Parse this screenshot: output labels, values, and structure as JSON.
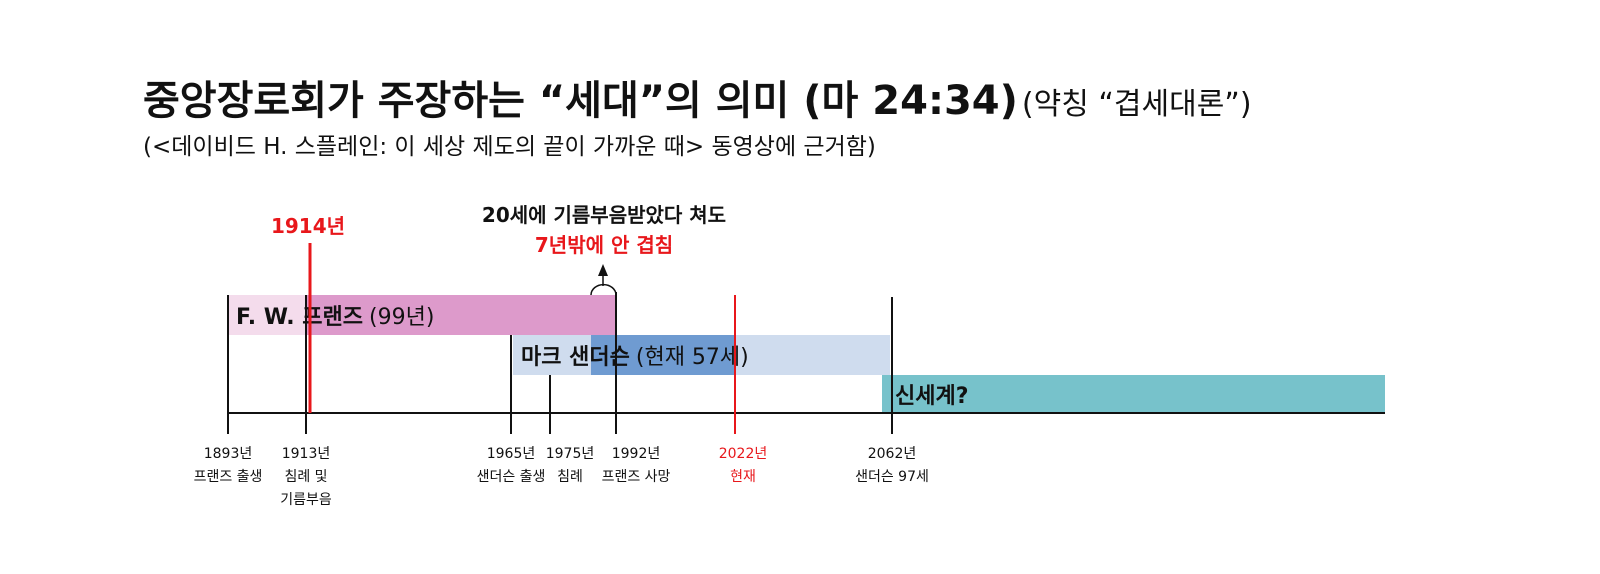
{
  "title": {
    "main": "중앙장로회가 주장하는 “세대”의 의미 (마 24:34)",
    "aside": "(약칭 “겹세대론”)"
  },
  "subtitle": "(<데이비드 H. 스플레인: 이 세상 제도의 끝이 가까운 때> 동영상에 근거함)",
  "callouts": {
    "year_1914": "1914년",
    "overlap_line1": "20세에 기름부음받았다 쳐도",
    "overlap_line2": "7년밖에 안 겹침"
  },
  "bars": [
    {
      "name": "F. W. 프랜즈",
      "note": "(99년)"
    },
    {
      "name": "마크 샌더슨",
      "note": "(현재 57세)"
    },
    {
      "name": "신세계?"
    }
  ],
  "ticks": [
    {
      "lines": [
        "1893년",
        "프랜즈 출생"
      ]
    },
    {
      "lines": [
        "1913년",
        "침례 및",
        "기름부음"
      ]
    },
    {
      "lines": [
        "1965년",
        "샌더슨 출생"
      ]
    },
    {
      "lines": [
        "1975년",
        "침례"
      ]
    },
    {
      "lines": [
        "1992년",
        "프랜즈 사망"
      ]
    },
    {
      "lines": [
        "2022년",
        "현재"
      ]
    },
    {
      "lines": [
        "2062년",
        "샌더슨 97세"
      ]
    }
  ]
}
